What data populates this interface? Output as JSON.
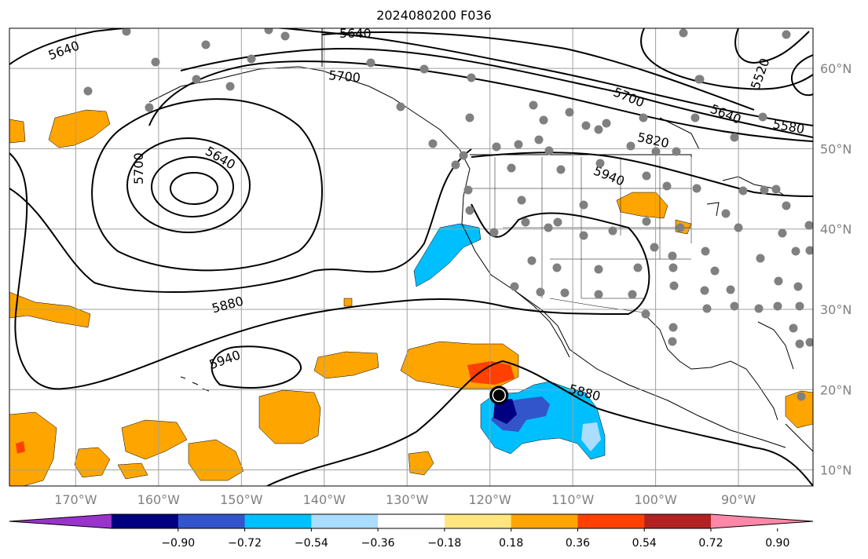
{
  "title": "2024080200 F036",
  "map": {
    "projection": "equirectangular",
    "lon_range": [
      -178,
      -81
    ],
    "lat_range": [
      8,
      65
    ],
    "lon_ticks": [
      {
        "lon": -170,
        "label": "170°W"
      },
      {
        "lon": -160,
        "label": "160°W"
      },
      {
        "lon": -150,
        "label": "150°W"
      },
      {
        "lon": -140,
        "label": "140°W"
      },
      {
        "lon": -130,
        "label": "130°W"
      },
      {
        "lon": -120,
        "label": "120°W"
      },
      {
        "lon": -110,
        "label": "110°W"
      },
      {
        "lon": -100,
        "label": "100°W"
      },
      {
        "lon": -90,
        "label": "90°W"
      }
    ],
    "lat_ticks": [
      {
        "lat": 60,
        "label": "60°N"
      },
      {
        "lat": 50,
        "label": "50°N"
      },
      {
        "lat": 40,
        "label": "40°N"
      },
      {
        "lat": 30,
        "label": "30°N"
      },
      {
        "lat": 20,
        "label": "20°N"
      },
      {
        "lat": 10,
        "label": "10°N"
      }
    ],
    "gridlines": true,
    "contour_labels": [
      "5640",
      "5640",
      "5640",
      "5700",
      "5700",
      "5700",
      "5640",
      "5580",
      "5520",
      "5820",
      "5940",
      "5880",
      "5940",
      "5880"
    ],
    "storm_marker": {
      "lon": -118.9,
      "lat": 19.3,
      "color": "#000000"
    },
    "station_color": "#808080"
  },
  "colorbar": {
    "colors": [
      "#9933cc",
      "#000080",
      "#3355cc",
      "#00bfff",
      "#aaddff",
      "#ffffff",
      "#ffe680",
      "#ffa500",
      "#ff4000",
      "#b22222",
      "#ff88aa"
    ],
    "tick_labels": [
      "−0.90",
      "−0.72",
      "−0.54",
      "−0.36",
      "−0.18",
      "0.18",
      "0.36",
      "0.54",
      "0.72",
      "0.90"
    ],
    "extend": "both"
  }
}
